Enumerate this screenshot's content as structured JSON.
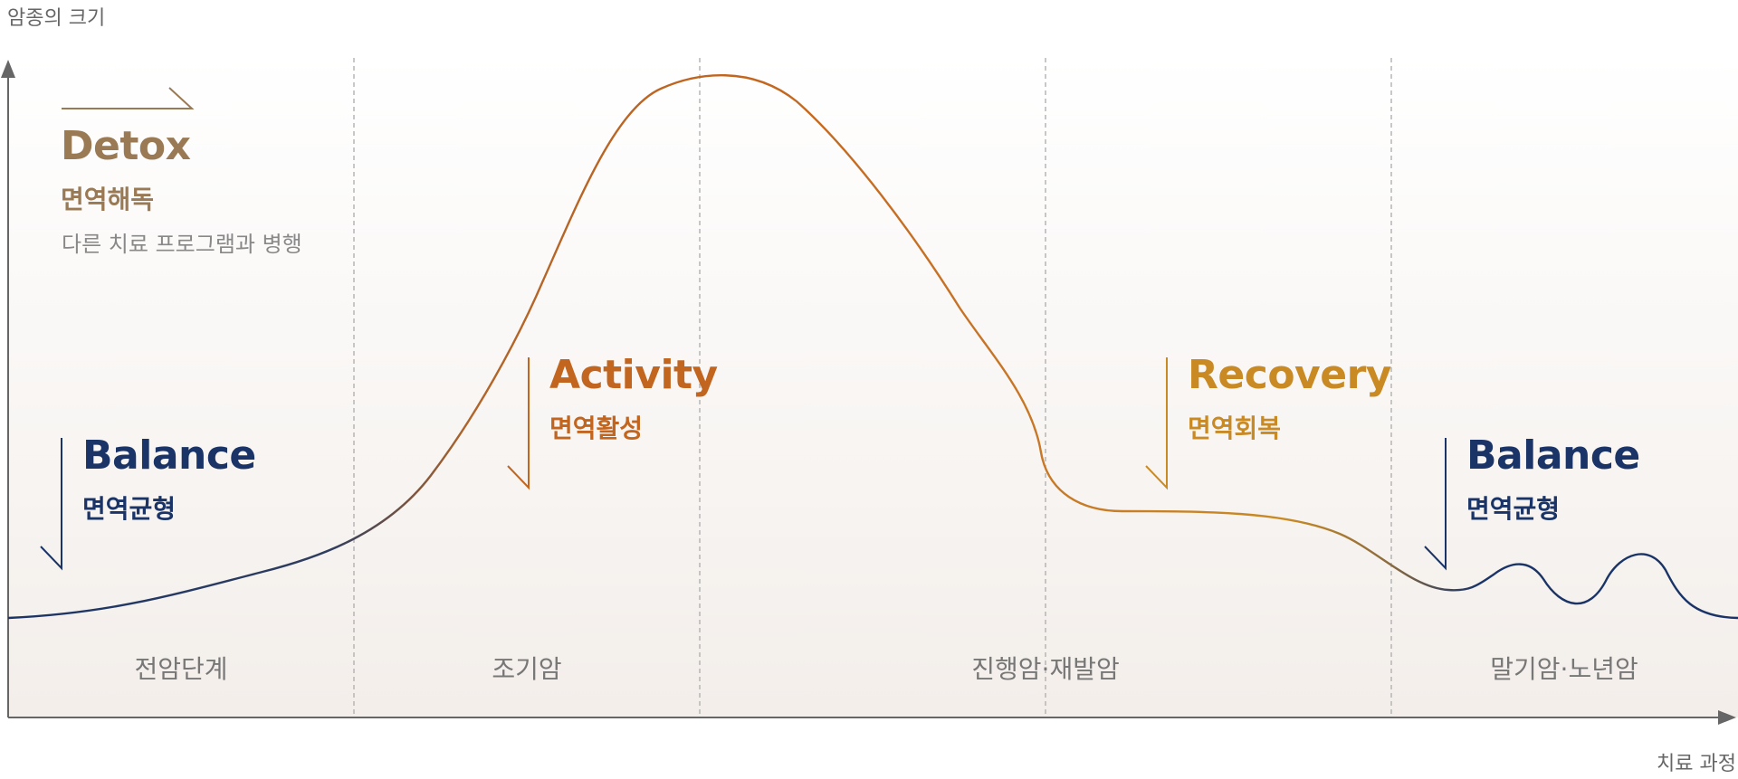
{
  "axes": {
    "y_label": "암종의 크기",
    "x_label": "치료 과정"
  },
  "stages": [
    "전암단계",
    "조기암",
    "진행암·재발암",
    "말기암·노년암"
  ],
  "phases": {
    "detox": {
      "initial": "D",
      "rest": "etox",
      "subtitle": "면역해독",
      "description": "다른 치료 프로그램과 병행"
    },
    "balance_left": {
      "initial": "B",
      "rest": "alance",
      "subtitle": "면역균형"
    },
    "activity": {
      "initial": "A",
      "rest": "ctivity",
      "subtitle": "면역활성"
    },
    "recovery": {
      "initial": "R",
      "rest": "ecovery",
      "subtitle": "면역회복"
    },
    "balance_right": {
      "initial": "B",
      "rest": "alance",
      "subtitle": "면역균형"
    }
  },
  "colors": {
    "detox": "#9a7a55",
    "balance": "#1a3467",
    "activity": "#c2651f",
    "recovery": "#c98a24",
    "axis": "#666666",
    "grid": "#b5b5b5"
  }
}
